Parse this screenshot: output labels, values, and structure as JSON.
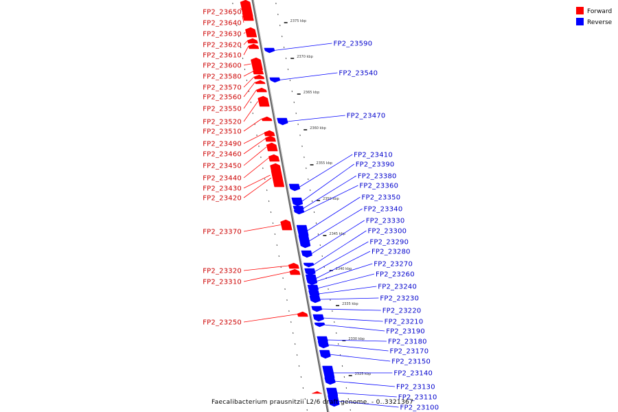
{
  "legend": [
    {
      "label": "Forward",
      "color": "#ff0000"
    },
    {
      "label": "Reverse",
      "color": "#0000ff"
    }
  ],
  "footer": "Faecalibacterium prausnitzii L2/6 draft genome. - 0..3321367",
  "colors": {
    "forward": "#ff0000",
    "reverse": "#0000ff",
    "label_forward": "#cc0000",
    "label_reverse": "#0000cc",
    "backbone": "#888888"
  },
  "scale_ticks": [
    "2375 kbp",
    "2370 kbp",
    "2365 kbp",
    "2360 kbp",
    "2355 kbp",
    "2350 kbp",
    "2345 kbp",
    "2340 kbp",
    "2335 kbp",
    "2330 kbp",
    "2325 kbp"
  ],
  "forward_genes": [
    "FP2_23650",
    "FP2_23640",
    "FP2_23630",
    "FP2_23620",
    "FP2_23610",
    "FP2_23600",
    "FP2_23580",
    "FP2_23570",
    "FP2_23560",
    "FP2_23550",
    "FP2_23520",
    "FP2_23510",
    "FP2_23490",
    "FP2_23460",
    "FP2_23450",
    "FP2_23440",
    "FP2_23430",
    "FP2_23420",
    "FP2_23370",
    "FP2_23320",
    "FP2_23310",
    "FP2_23250"
  ],
  "reverse_genes": [
    "FP2_23590",
    "FP2_23540",
    "FP2_23470",
    "FP2_23410",
    "FP2_23390",
    "FP2_23380",
    "FP2_23360",
    "FP2_23350",
    "FP2_23340",
    "FP2_23330",
    "FP2_23300",
    "FP2_23290",
    "FP2_23280",
    "FP2_23270",
    "FP2_23260",
    "FP2_23240",
    "FP2_23230",
    "FP2_23220",
    "FP2_23210",
    "FP2_23190",
    "FP2_23180",
    "FP2_23170",
    "FP2_23150",
    "FP2_23140",
    "FP2_23130",
    "FP2_23110",
    "FP2_23100"
  ]
}
